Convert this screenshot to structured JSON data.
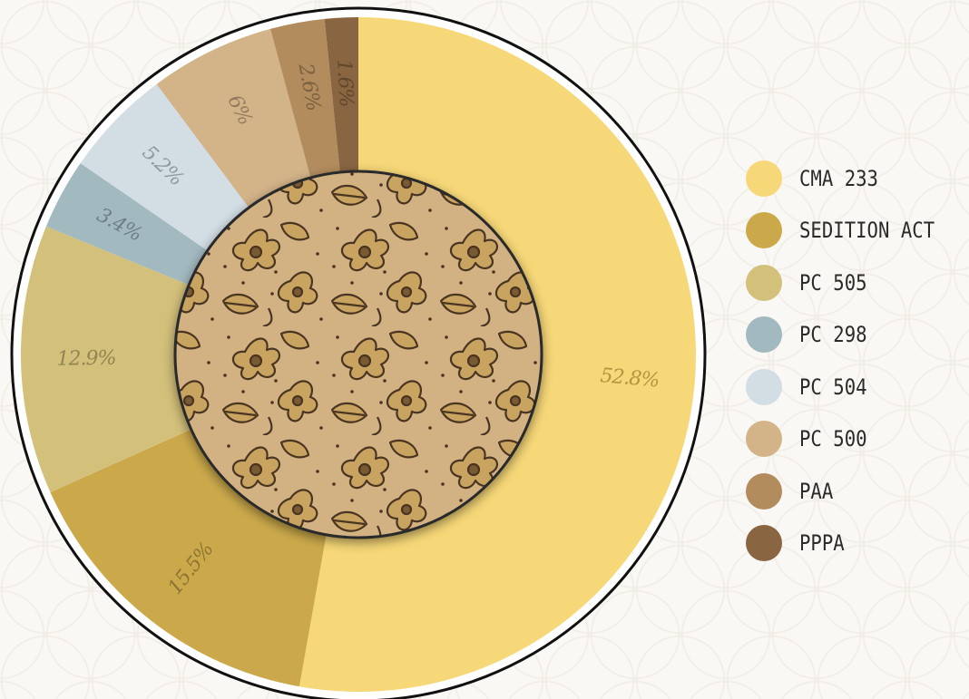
{
  "chart_data": {
    "type": "pie",
    "variant": "donut",
    "title": "",
    "categories": [
      "CMA 233",
      "SEDITION ACT",
      "PC 505",
      "PC 298",
      "PC 504",
      "PC 500",
      "PAA",
      "PPPA"
    ],
    "values": [
      52.8,
      15.5,
      12.9,
      3.4,
      5.2,
      6,
      2.6,
      1.6
    ],
    "value_labels": [
      "52.8%",
      "15.5%",
      "12.9%",
      "3.4%",
      "5.2%",
      "6%",
      "2.6%",
      "1.6%"
    ],
    "colors": [
      "#f7d878",
      "#cba94b",
      "#d3c07a",
      "#a2b9c0",
      "#d2dde4",
      "#d3b388",
      "#b38c5e",
      "#896542"
    ],
    "label_colors": [
      "#b29743",
      "#8c7532",
      "#928552",
      "#6d7f85",
      "#8d989f",
      "#937c5e",
      "#7c6140",
      "#5f462d"
    ],
    "legend_position": "right",
    "start_angle": "top",
    "direction": "clockwise",
    "center_image": "floral-pattern"
  },
  "legend": {
    "items": [
      {
        "label": "CMA 233",
        "color": "#f7d878"
      },
      {
        "label": "SEDITION ACT",
        "color": "#cba94b"
      },
      {
        "label": "PC 505",
        "color": "#d3c07a"
      },
      {
        "label": "PC 298",
        "color": "#a2b9c0"
      },
      {
        "label": "PC 504",
        "color": "#d2dde4"
      },
      {
        "label": "PC 500",
        "color": "#d3b388"
      },
      {
        "label": "PAA",
        "color": "#b38c5e"
      },
      {
        "label": "PPPA",
        "color": "#896542"
      }
    ]
  }
}
